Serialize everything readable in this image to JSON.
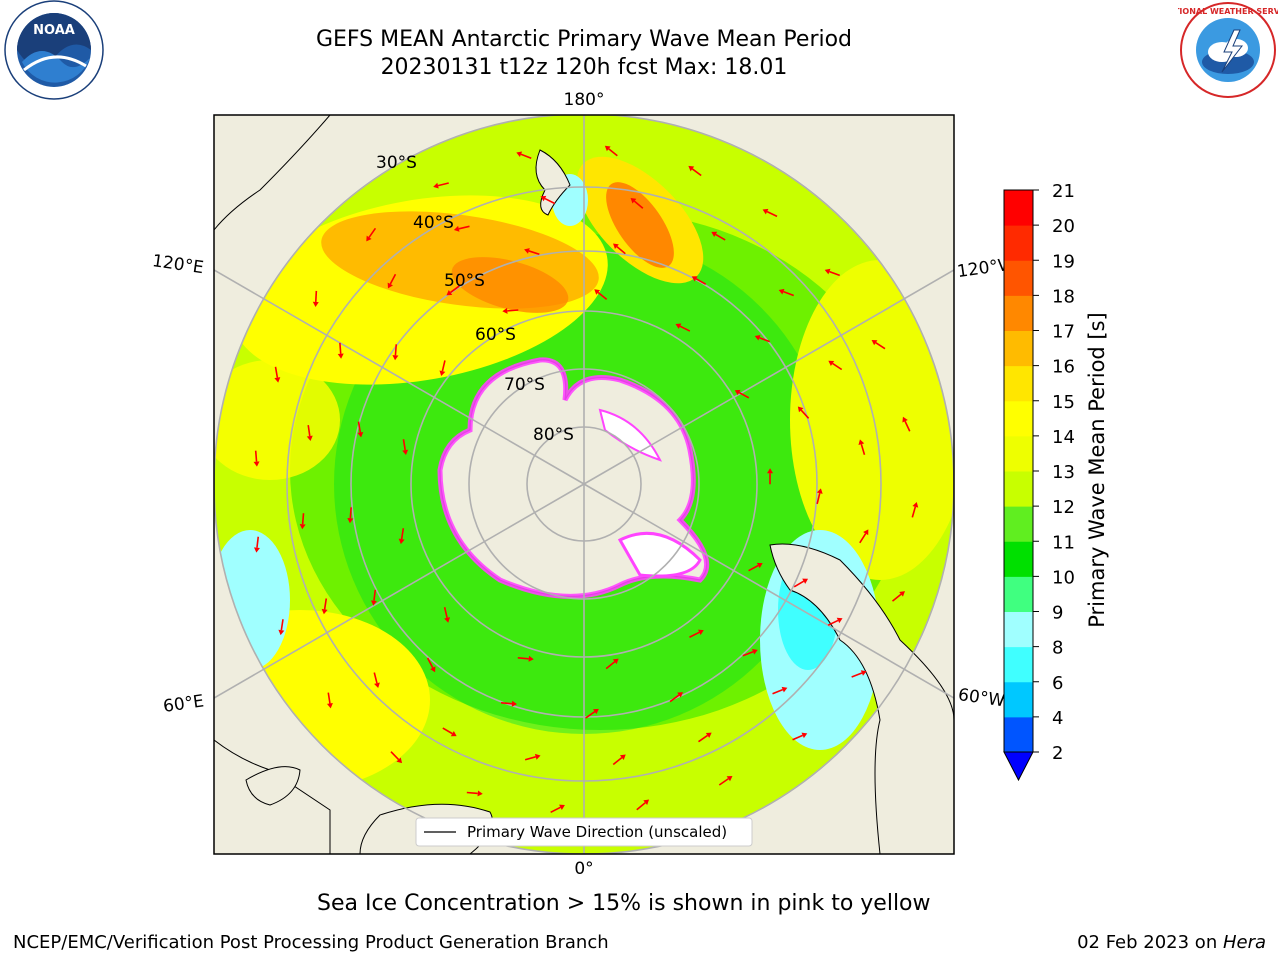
{
  "header": {
    "title_line1": "GEFS MEAN Antarctic Primary Wave Mean Period",
    "title_line2": "20230131 t12z 120h fcst   Max: 18.01"
  },
  "logos": {
    "left": {
      "name": "noaa-logo",
      "text": "NOAA",
      "ring_text": "NATIONAL OCEANIC AND ATMOSPHERIC ADMINISTRATION · U.S. DEPARTMENT OF COMMERCE",
      "color": "#1f5aa6"
    },
    "right": {
      "name": "nws-logo",
      "ring_text": "NATIONAL WEATHER SERVICE",
      "color": "#d62728"
    }
  },
  "map": {
    "projection": "south-polar-stereographic",
    "longitude_labels": {
      "top": "180°",
      "bottom": "0°",
      "left_upper": "120°E",
      "left_lower": "60°E",
      "right_upper": "120°W",
      "right_lower": "60°W"
    },
    "latitude_labels": [
      "30°S",
      "40°S",
      "50°S",
      "60°S",
      "70°S",
      "80°S"
    ],
    "legend_text": "Primary Wave Direction (unscaled)",
    "arrow_color": "#ff0000",
    "land_color": "#efedde"
  },
  "colorbar": {
    "label": "Primary Wave Mean Period [s]",
    "ticks": [
      "2",
      "4",
      "6",
      "8",
      "9",
      "10",
      "11",
      "12",
      "13",
      "14",
      "15",
      "16",
      "17",
      "18",
      "19",
      "20",
      "21"
    ],
    "colors": [
      "#0055ff",
      "#00c8ff",
      "#40ffff",
      "#a0ffff",
      "#40ff80",
      "#00e000",
      "#60ee20",
      "#c8ff00",
      "#eeff00",
      "#ffff00",
      "#ffe600",
      "#ffbb00",
      "#ff8800",
      "#ff5500",
      "#ff2a00",
      "#ff0000"
    ],
    "extend_min_color": "#0000ff"
  },
  "notes": {
    "sea_ice": "Sea Ice Concentration > 15% is shown in pink to yellow"
  },
  "footer": {
    "left": "NCEP/EMC/Verification Post Processing Product Generation Branch",
    "date": "02 Feb 2023 on ",
    "machine": "Hera"
  }
}
